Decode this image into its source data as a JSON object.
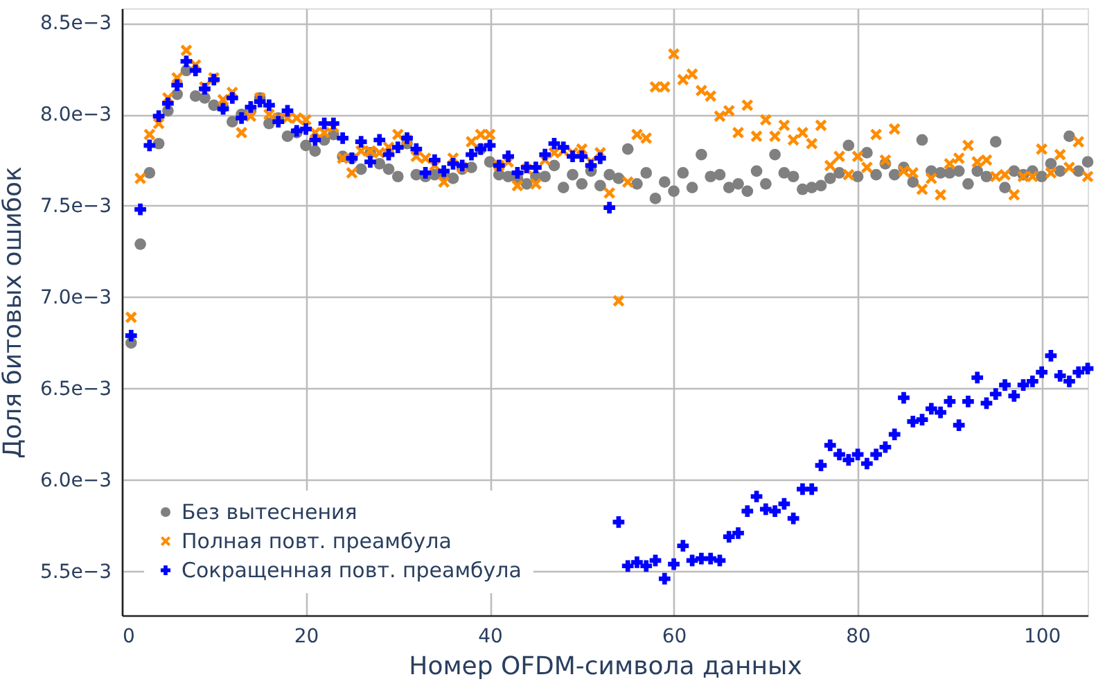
{
  "chart_data": {
    "type": "scatter",
    "xlabel": "Номер OFDM-символа данных",
    "ylabel": "Доля битовых ошибок",
    "x": [
      1,
      2,
      3,
      4,
      5,
      6,
      7,
      8,
      9,
      10,
      11,
      12,
      13,
      14,
      15,
      16,
      17,
      18,
      19,
      20,
      21,
      22,
      23,
      24,
      25,
      26,
      27,
      28,
      29,
      30,
      31,
      32,
      33,
      34,
      35,
      36,
      37,
      38,
      39,
      40,
      41,
      42,
      43,
      44,
      45,
      46,
      47,
      48,
      49,
      50,
      51,
      52,
      53,
      54,
      55,
      56,
      57,
      58,
      59,
      60,
      61,
      62,
      63,
      64,
      65,
      66,
      67,
      68,
      69,
      70,
      71,
      72,
      73,
      74,
      75,
      76,
      77,
      78,
      79,
      80,
      81,
      82,
      83,
      84,
      85,
      86,
      87,
      88,
      89,
      90,
      91,
      92,
      93,
      94,
      95,
      96,
      97,
      98,
      99,
      100,
      101,
      102,
      103,
      104,
      105
    ],
    "series": [
      {
        "name": "Без вытеснения",
        "color": "#808080",
        "marker": "circle",
        "values": [
          0.00675,
          0.00729,
          0.00768,
          0.00784,
          0.00802,
          0.00811,
          0.00824,
          0.0081,
          0.00809,
          0.00805,
          0.00804,
          0.00796,
          0.008,
          0.00802,
          0.00809,
          0.00795,
          0.00798,
          0.00788,
          0.0079,
          0.00783,
          0.0078,
          0.00786,
          0.00789,
          0.00777,
          0.00776,
          0.0077,
          0.00779,
          0.00773,
          0.0077,
          0.00766,
          0.00784,
          0.00767,
          0.00766,
          0.00767,
          0.00767,
          0.00765,
          0.0077,
          0.00771,
          0.00781,
          0.00774,
          0.00767,
          0.00766,
          0.00765,
          0.00762,
          0.00766,
          0.00766,
          0.00772,
          0.0076,
          0.00767,
          0.00762,
          0.00769,
          0.00761,
          0.00767,
          0.00765,
          0.00781,
          0.00762,
          0.00768,
          0.00754,
          0.00763,
          0.00758,
          0.00768,
          0.0076,
          0.00778,
          0.00766,
          0.00767,
          0.0076,
          0.00762,
          0.00758,
          0.00769,
          0.00762,
          0.00778,
          0.00768,
          0.00766,
          0.00759,
          0.0076,
          0.00761,
          0.00765,
          0.00768,
          0.00783,
          0.00766,
          0.00779,
          0.00767,
          0.00773,
          0.00767,
          0.00771,
          0.00763,
          0.00786,
          0.00769,
          0.00768,
          0.00768,
          0.00769,
          0.00762,
          0.00769,
          0.00766,
          0.00785,
          0.0076,
          0.00769,
          0.00767,
          0.00769,
          0.00766,
          0.00773,
          0.00769,
          0.00788,
          0.00769,
          0.00774
        ]
      },
      {
        "name": "Полная повт. преамбула",
        "color": "#ff8c00",
        "marker": "x",
        "values": [
          0.00689,
          0.00765,
          0.00789,
          0.00795,
          0.00809,
          0.0082,
          0.00835,
          0.00827,
          0.00815,
          0.0082,
          0.00808,
          0.00812,
          0.0079,
          0.00799,
          0.00809,
          0.008,
          0.00798,
          0.00798,
          0.00798,
          0.00797,
          0.0079,
          0.0079,
          0.00793,
          0.00776,
          0.00768,
          0.0078,
          0.0078,
          0.00779,
          0.00782,
          0.00789,
          0.00786,
          0.00777,
          0.00776,
          0.00772,
          0.00763,
          0.00776,
          0.00771,
          0.00785,
          0.00789,
          0.00789,
          0.00772,
          0.00774,
          0.00761,
          0.0077,
          0.00762,
          0.00775,
          0.00779,
          0.0078,
          0.00779,
          0.00781,
          0.00774,
          0.00779,
          0.00757,
          0.00698,
          0.00763,
          0.00789,
          0.00787,
          0.00815,
          0.00815,
          0.00833,
          0.00819,
          0.00822,
          0.00813,
          0.0081,
          0.00799,
          0.00802,
          0.0079,
          0.00805,
          0.00788,
          0.00797,
          0.00788,
          0.00794,
          0.00786,
          0.0079,
          0.00784,
          0.00794,
          0.00772,
          0.00777,
          0.00767,
          0.00777,
          0.00771,
          0.00789,
          0.00775,
          0.00792,
          0.00769,
          0.00768,
          0.00759,
          0.00765,
          0.00756,
          0.00773,
          0.00776,
          0.00783,
          0.00774,
          0.00775,
          0.00766,
          0.00767,
          0.00756,
          0.00766,
          0.00766,
          0.00781,
          0.00768,
          0.00778,
          0.00771,
          0.00785,
          0.00766
        ]
      },
      {
        "name": "Сокращенная повт. преамбула",
        "color": "#0000ff",
        "marker": "cross",
        "values": [
          0.00679,
          0.00748,
          0.00783,
          0.00799,
          0.00806,
          0.00816,
          0.00829,
          0.00824,
          0.00814,
          0.00819,
          0.00803,
          0.00809,
          0.00798,
          0.00804,
          0.00807,
          0.00805,
          0.00796,
          0.00802,
          0.00791,
          0.00792,
          0.00786,
          0.00795,
          0.00795,
          0.00787,
          0.00776,
          0.00785,
          0.00774,
          0.00786,
          0.00778,
          0.00782,
          0.00787,
          0.00781,
          0.00768,
          0.00775,
          0.00769,
          0.00773,
          0.00772,
          0.00778,
          0.00781,
          0.00783,
          0.00772,
          0.00777,
          0.00768,
          0.00771,
          0.00771,
          0.00778,
          0.00784,
          0.00782,
          0.00777,
          0.00777,
          0.00772,
          0.00776,
          0.00749,
          0.00577,
          0.00553,
          0.00555,
          0.00553,
          0.00556,
          0.00546,
          0.00554,
          0.00564,
          0.00556,
          0.00557,
          0.00557,
          0.00556,
          0.00569,
          0.00571,
          0.00583,
          0.00591,
          0.00584,
          0.00583,
          0.00587,
          0.00579,
          0.00595,
          0.00595,
          0.00608,
          0.00619,
          0.00614,
          0.00611,
          0.00614,
          0.00609,
          0.00614,
          0.00618,
          0.00625,
          0.00645,
          0.00632,
          0.00633,
          0.00639,
          0.00637,
          0.00643,
          0.0063,
          0.00643,
          0.00656,
          0.00642,
          0.00647,
          0.00652,
          0.00646,
          0.00652,
          0.00654,
          0.00659,
          0.00668,
          0.00657,
          0.00654,
          0.00659,
          0.00661
        ]
      }
    ],
    "xlim": [
      0,
      105
    ],
    "xticks": [
      0,
      20,
      40,
      60,
      80,
      100
    ],
    "ylim": [
      0.00526,
      0.00858
    ],
    "yticks": [
      {
        "value": 0.0055,
        "label": "5.5e−3"
      },
      {
        "value": 0.006,
        "label": "6.0e−3"
      },
      {
        "value": 0.0065,
        "label": "6.5e−3"
      },
      {
        "value": 0.007,
        "label": "7.0e−3"
      },
      {
        "value": 0.0075,
        "label": "7.5e−3"
      },
      {
        "value": 0.008,
        "label": "8.0e−3"
      },
      {
        "value": 0.0085,
        "label": "8.5e−3"
      }
    ],
    "grid": true,
    "legend": "bottom left"
  }
}
